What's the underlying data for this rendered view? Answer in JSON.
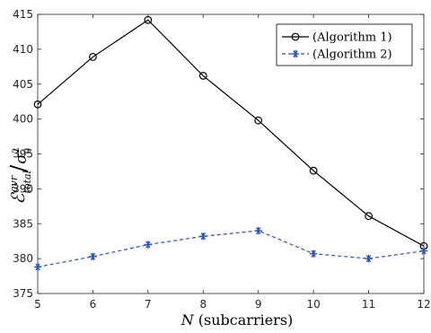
{
  "chart_data": {
    "type": "line",
    "x": [
      5,
      6,
      7,
      8,
      9,
      10,
      11,
      12
    ],
    "series": [
      {
        "name": "(Algorithm 1)",
        "values": [
          402.1,
          408.9,
          414.2,
          406.2,
          399.8,
          392.6,
          386.1,
          381.8
        ],
        "color": "#000000",
        "marker": "circle",
        "linestyle": "solid"
      },
      {
        "name": "(Algorithm 2)",
        "values": [
          378.8,
          380.3,
          382.0,
          383.2,
          384.0,
          380.7,
          380.0,
          381.1
        ],
        "color": "#2a52be",
        "marker": "asterisk",
        "linestyle": "dashed"
      }
    ],
    "xlabel": "N (subcarriers)",
    "ylabel": "ε_total^avr / σ_0^2",
    "xlim": [
      5,
      12
    ],
    "ylim": [
      375,
      415
    ],
    "xticks": [
      "5",
      "6",
      "7",
      "8",
      "9",
      "10",
      "11",
      "12"
    ],
    "yticks": [
      "375",
      "380",
      "385",
      "390",
      "395",
      "400",
      "405",
      "410",
      "415"
    ],
    "grid": false,
    "legend_position": "top-right"
  }
}
